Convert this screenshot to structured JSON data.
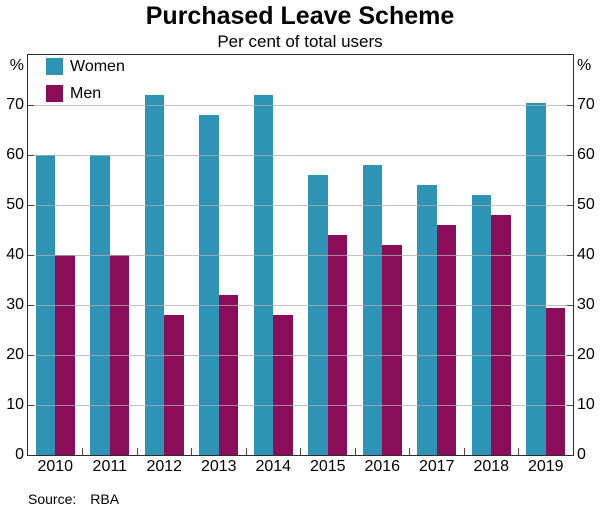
{
  "header": {
    "title": "Purchased Leave Scheme",
    "subtitle": "Per cent of total users"
  },
  "axis": {
    "unit_left": "%",
    "unit_right": "%"
  },
  "source": {
    "label": "Source:",
    "value": "RBA"
  },
  "chart_data": {
    "type": "bar",
    "title": "Purchased Leave Scheme",
    "subtitle": "Per cent of total users",
    "categories": [
      "2010",
      "2011",
      "2012",
      "2013",
      "2014",
      "2015",
      "2016",
      "2017",
      "2018",
      "2019"
    ],
    "series": [
      {
        "name": "Women",
        "color": "#2E94B5",
        "values": [
          60,
          60,
          72,
          68,
          72,
          56,
          58,
          54,
          52,
          70.5
        ]
      },
      {
        "name": "Men",
        "color": "#8B0D5A",
        "values": [
          40,
          40,
          28,
          32,
          28,
          44,
          42,
          46,
          48,
          29.5
        ]
      }
    ],
    "xlabel": "",
    "ylabel": "%",
    "ylim": [
      0,
      80
    ],
    "yticks": [
      0,
      10,
      20,
      30,
      40,
      50,
      60,
      70
    ],
    "grid": true,
    "legend_position": "top-left"
  }
}
